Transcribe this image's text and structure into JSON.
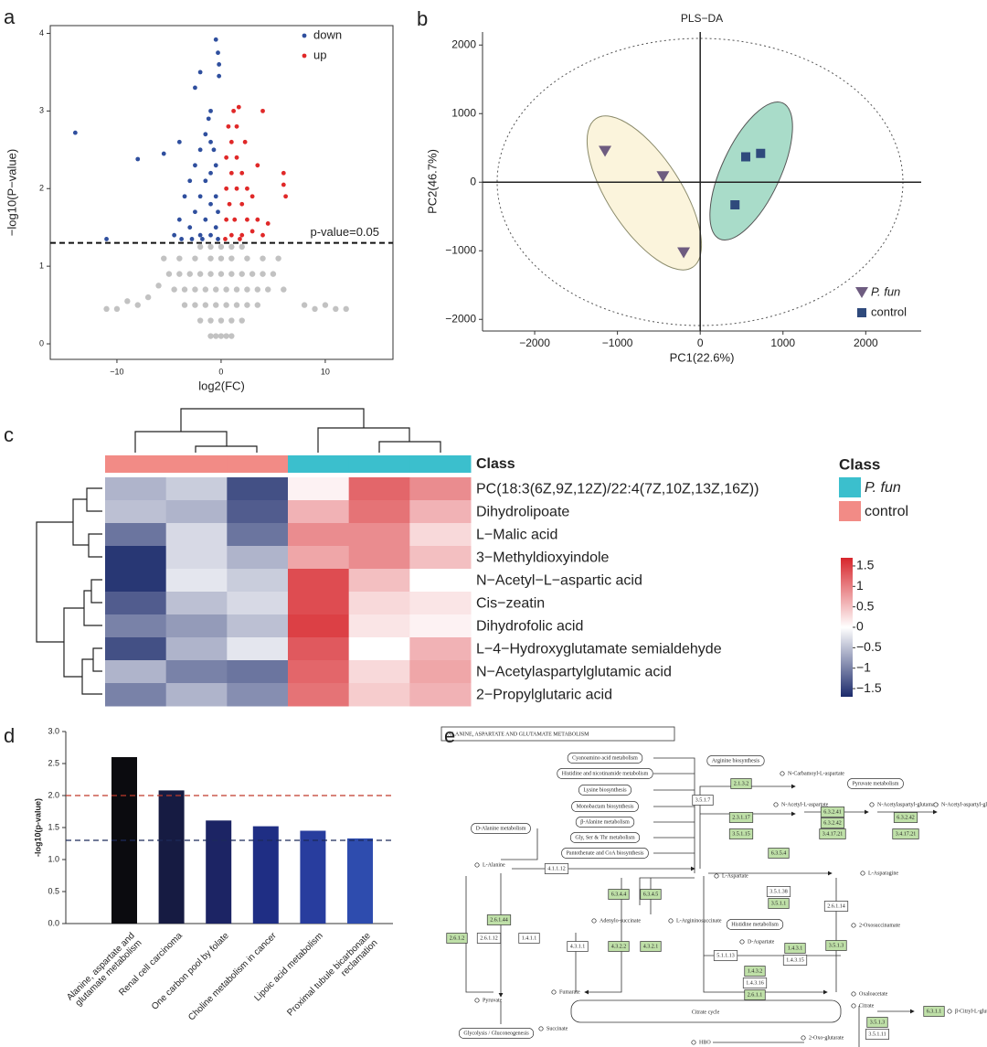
{
  "panel_labels": [
    "a",
    "b",
    "c",
    "d",
    "e"
  ],
  "chart_data": [
    {
      "type": "scatter",
      "xlabel": "log2(FC)",
      "ylabel": "−log10(P−value)",
      "xlim": [
        -16.4,
        16.5
      ],
      "ylim": [
        -0.2,
        4.1
      ],
      "xticks": [
        {
          "value": -10,
          "label": "−10"
        },
        0,
        10
      ],
      "yticks": [
        0,
        1,
        2,
        3,
        4
      ],
      "threshold": {
        "value": 1.3,
        "label": "p-value=0.05"
      },
      "legend": "top-right",
      "series": [
        {
          "color": "#c2c2c2",
          "x": [
            -1,
            -0.5,
            0,
            0.5,
            1,
            -2,
            -1,
            0,
            1,
            2,
            -3.5,
            -2.5,
            -1.5,
            -0.5,
            0.5,
            1.5,
            2.5,
            3.5,
            -4.5,
            -3.5,
            -2.5,
            -1.5,
            -0.5,
            0.5,
            1.5,
            2.5,
            3.5,
            4.5,
            -5,
            -4,
            -3,
            -2,
            -1,
            0,
            1,
            2,
            3,
            4,
            5,
            -5.5,
            -4,
            -2.5,
            -1,
            0,
            1,
            2.5,
            4,
            5.5,
            -2,
            -1,
            0,
            1,
            2,
            -11,
            -10,
            -8,
            -7,
            8,
            9,
            11,
            12,
            -6,
            6,
            -9,
            10
          ],
          "y": [
            0.1,
            0.1,
            0.1,
            0.1,
            0.1,
            0.3,
            0.3,
            0.3,
            0.3,
            0.3,
            0.5,
            0.5,
            0.5,
            0.5,
            0.5,
            0.5,
            0.5,
            0.5,
            0.7,
            0.7,
            0.7,
            0.7,
            0.7,
            0.7,
            0.7,
            0.7,
            0.7,
            0.7,
            0.9,
            0.9,
            0.9,
            0.9,
            0.9,
            0.9,
            0.9,
            0.9,
            0.9,
            0.9,
            0.9,
            1.1,
            1.1,
            1.1,
            1.1,
            1.1,
            1.1,
            1.1,
            1.1,
            1.1,
            1.25,
            1.25,
            1.25,
            1.25,
            1.25,
            0.45,
            0.45,
            0.5,
            0.6,
            0.5,
            0.45,
            0.45,
            0.45,
            0.75,
            0.7,
            0.55,
            0.5
          ]
        },
        {
          "name": "down",
          "color": "#2f4f9e",
          "x": [
            -14,
            -8,
            -5.5,
            -11,
            -4,
            -2.5,
            -2,
            -0.5,
            -0.3,
            -0.2,
            -1,
            -0.2,
            -4.5,
            -4,
            -3.5,
            -3,
            -3,
            -2.5,
            -2.5,
            -2,
            -2,
            -2,
            -1.5,
            -1.5,
            -1.5,
            -1,
            -1,
            -1,
            -1,
            -0.5,
            -0.5,
            -0.5,
            -0.3,
            -0.3,
            -1.8,
            -2.8,
            -3.8,
            -1.2,
            -0.7
          ],
          "y": [
            2.72,
            2.38,
            2.45,
            1.35,
            2.6,
            3.3,
            3.5,
            3.92,
            3.75,
            3.6,
            3.0,
            3.45,
            1.4,
            1.6,
            1.9,
            1.5,
            2.1,
            1.7,
            2.3,
            1.4,
            1.9,
            2.5,
            1.6,
            2.1,
            2.7,
            1.4,
            1.8,
            2.2,
            2.6,
            1.5,
            1.9,
            2.3,
            1.35,
            1.7,
            1.35,
            1.35,
            1.35,
            2.9,
            2.5
          ]
        },
        {
          "name": "up",
          "color": "#e02828",
          "x": [
            0.4,
            0.5,
            0.5,
            0.5,
            0.8,
            1,
            1,
            1,
            1.3,
            1.5,
            1.5,
            1.5,
            2,
            2,
            2,
            2.5,
            2.5,
            3,
            3,
            3.5,
            4,
            4.5,
            6,
            6,
            6.2,
            1.7,
            4,
            2.3,
            1.2,
            0.7,
            3.5,
            1.8
          ],
          "y": [
            1.35,
            1.6,
            2.0,
            2.4,
            1.8,
            1.4,
            2.2,
            2.6,
            1.6,
            2.0,
            2.4,
            2.8,
            1.4,
            1.8,
            2.2,
            1.6,
            2.0,
            1.45,
            1.9,
            1.6,
            1.4,
            1.55,
            2.2,
            2.05,
            1.9,
            3.05,
            3.0,
            2.6,
            3.0,
            2.8,
            2.3,
            1.35
          ]
        }
      ]
    },
    {
      "type": "scatter",
      "title": "PLS−DA",
      "xlabel": "PC1(22.6%)",
      "ylabel": "PC2(46.7%)",
      "xlim": [
        -2630,
        2670
      ],
      "ylim": [
        -2170,
        2190
      ],
      "xticks": [
        {
          "value": -2000,
          "label": "−2000"
        },
        {
          "value": -1000,
          "label": "−1000"
        },
        0,
        1000,
        2000
      ],
      "yticks": [
        {
          "value": -2000,
          "label": "−2000"
        },
        {
          "value": -1000,
          "label": "−1000"
        },
        0,
        1000,
        2000
      ],
      "legend": "bottom-right",
      "series": [
        {
          "name": "P. fun",
          "marker": "triangle-down",
          "color": "#6e5c80",
          "x": [
            -1150,
            -450,
            -200
          ],
          "y": [
            450,
            80,
            -1030
          ]
        },
        {
          "name": "control",
          "marker": "square",
          "color": "#2f4a7c",
          "x": [
            550,
            730,
            420
          ],
          "y": [
            370,
            420,
            -330
          ]
        }
      ]
    },
    {
      "type": "heatmap",
      "annotation_label": "Class",
      "legend_title": "Class",
      "classes": [
        {
          "name": "P. fun",
          "color": "#3bbfcd"
        },
        {
          "name": "control",
          "color": "#f28b86"
        }
      ],
      "column_class": [
        1,
        1,
        1,
        0,
        0,
        0
      ],
      "rows": [
        "PC(18:3(6Z,9Z,12Z)/22:4(7Z,10Z,13Z,16Z))",
        "Dihydrolipoate",
        "L−Malic acid",
        "3−Methyldioxyindole",
        "N−Acetyl−L−aspartic acid",
        "Cis−zeatin",
        "Dihydrofolic acid",
        "L−4−Hydroxyglutamate semialdehyde",
        "N−Acetylaspartylglutamic acid",
        "2−Propylglutaric acid"
      ],
      "values": [
        [
          -0.6,
          -0.4,
          -1.4,
          0.1,
          1.2,
          0.9
        ],
        [
          -0.5,
          -0.6,
          -1.3,
          0.6,
          1.1,
          0.6
        ],
        [
          -1.1,
          -0.3,
          -1.1,
          0.9,
          0.9,
          0.3
        ],
        [
          -1.6,
          -0.3,
          -0.6,
          0.7,
          0.9,
          0.5
        ],
        [
          -1.6,
          -0.2,
          -0.4,
          1.4,
          0.5,
          0.0
        ],
        [
          -1.3,
          -0.5,
          -0.3,
          1.4,
          0.3,
          0.2
        ],
        [
          -1.0,
          -0.8,
          -0.5,
          1.5,
          0.2,
          0.1
        ],
        [
          -1.4,
          -0.6,
          -0.2,
          1.3,
          0.0,
          0.6
        ],
        [
          -0.6,
          -1.0,
          -1.1,
          1.2,
          0.3,
          0.7
        ],
        [
          -1.0,
          -0.6,
          -0.9,
          1.1,
          0.4,
          0.6
        ]
      ],
      "colors": [
        "#1b2a6b",
        "#ffffff",
        "#d7262c"
      ],
      "clim": [
        -1.7,
        1.7
      ],
      "colorbar_ticks": [
        1.5,
        1,
        0.5,
        0,
        {
          "value": -0.5,
          "label": "−0.5"
        },
        {
          "value": -1,
          "label": "−1"
        },
        {
          "value": -1.5,
          "label": "−1.5"
        }
      ]
    },
    {
      "type": "bar",
      "ylabel": "-log10(p-value)",
      "categories": [
        "Alanine, aspartate and glutamate metabolism",
        "Renal cell carcinoma",
        "One carbon pool by folate",
        "Choline metabolism in cancer",
        "Lipoic acid metabolism",
        "Proximal tubule bicarbonate reclamation"
      ],
      "values": [
        2.6,
        2.08,
        1.61,
        1.52,
        1.45,
        1.33
      ],
      "colors": [
        "#0b0b0f",
        "#161b42",
        "#1c2464",
        "#1f2e84",
        "#283d9e",
        "#2e4cae"
      ],
      "ylim": [
        0,
        3
      ],
      "yticks": [
        {
          "value": 0,
          "label": "0.0"
        },
        0.5,
        {
          "value": 1,
          "label": "1.0"
        },
        1.5,
        {
          "value": 2,
          "label": "2.0"
        },
        2.5,
        {
          "value": 3,
          "label": "3.0"
        }
      ],
      "hlines": [
        {
          "value": 2,
          "color": "#c0392b"
        },
        {
          "value": 1.3,
          "color": "#1c2a5a"
        }
      ]
    }
  ],
  "diagram": {
    "title": "ALANINE, ASPARTATE AND GLUTAMATE METABOLISM",
    "nodes": [
      {
        "label": "Cyanoamino acid metabolism"
      },
      {
        "label": "Histidine and nicotinamide metabolism"
      },
      {
        "label": "Lysine biosynthesis"
      },
      {
        "label": "Monobactam biosynthesis"
      },
      {
        "label": "β-Alanine metabolism"
      },
      {
        "label": "Gly, Ser & Thr metabolism"
      },
      {
        "label": "Pantothenate and CoA biosynthesis"
      },
      {
        "label": "D-Alanine metabolism"
      },
      {
        "label": "Arginine biosynthesis"
      },
      {
        "label": "Pyruvate metabolism"
      },
      {
        "label": "Histidine metabolism"
      },
      {
        "label": "Citrate cycle"
      },
      {
        "label": "Glycolysis / Gluconeogenesis"
      },
      {
        "label": "2.1.3.2"
      },
      {
        "label": "2.3.1.17"
      },
      {
        "label": "3.5.1.15"
      },
      {
        "label": "6.3.2.41"
      },
      {
        "label": "6.3.2.42"
      },
      {
        "label": "3.4.17.21"
      },
      {
        "label": "6.3.2.42"
      },
      {
        "label": "3.4.17.21"
      },
      {
        "label": "6.3.5.4"
      },
      {
        "label": "3.5.1.38"
      },
      {
        "label": "3.5.1.1"
      },
      {
        "label": "2.6.1.14"
      },
      {
        "label": "3.5.1.3"
      },
      {
        "label": "1.4.3.1"
      },
      {
        "label": "1.4.3.15"
      },
      {
        "label": "5.1.1.13"
      },
      {
        "label": "1.4.3.2"
      },
      {
        "label": "1.4.3.16"
      },
      {
        "label": "2.6.1.1"
      },
      {
        "label": "6.3.4.4"
      },
      {
        "label": "6.3.4.5"
      },
      {
        "label": "4.3.2.2"
      },
      {
        "label": "4.3.2.1"
      },
      {
        "label": "4.3.1.1"
      },
      {
        "label": "2.6.1.44"
      },
      {
        "label": "2.6.1.2"
      },
      {
        "label": "2.6.1.12"
      },
      {
        "label": "1.4.1.1"
      },
      {
        "label": "4.1.1.12"
      },
      {
        "label": "3.5.1.7"
      },
      {
        "label": "6.3.1.1"
      },
      {
        "label": "3.5.1.3"
      },
      {
        "label": "3.5.1.11"
      },
      {
        "label": "N-Carbamoyl-L-aspartate"
      },
      {
        "label": "N-Acetyl-L-aspartate"
      },
      {
        "label": "N-Acetylaspartyl-glutamate"
      },
      {
        "label": "N-Acetyl-aspartyl-glutamyl-glutamate"
      },
      {
        "label": "L-Aspartate"
      },
      {
        "label": "L-Alanine"
      },
      {
        "label": "L-Asparagine"
      },
      {
        "label": "Adenylo-succinate"
      },
      {
        "label": "L-Argininosuccinate"
      },
      {
        "label": "D-Aspartate"
      },
      {
        "label": "2-Oxosuccinamate"
      },
      {
        "label": "Fumarate"
      },
      {
        "label": "Oxaloacetate"
      },
      {
        "label": "Pyruvate"
      },
      {
        "label": "Succinate"
      },
      {
        "label": "Citrate"
      },
      {
        "label": "β-Citryl-L-glutamate"
      },
      {
        "label": "2-Oxo-glutarate"
      },
      {
        "label": "HBO"
      }
    ]
  }
}
